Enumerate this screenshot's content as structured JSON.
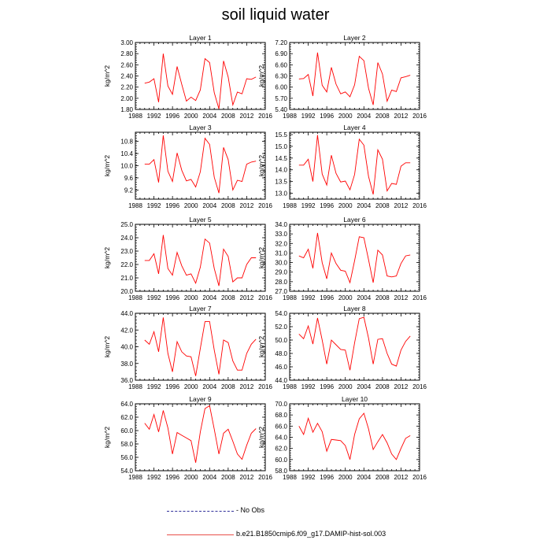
{
  "title": "soil liquid water",
  "legend": [
    {
      "label": "- No Obs",
      "color": "#2f2f9a",
      "style": "dashed"
    },
    {
      "label": "b.e21.B1850cmip6.f09_g17.DAMIP-hist-sol.003",
      "color": "#e8504a",
      "style": "solid"
    }
  ],
  "chart_data": [
    {
      "type": "line",
      "title": "Layer 1",
      "xlabel": "",
      "ylabel": "kg/m^2",
      "xlim": [
        1988,
        2016
      ],
      "xticks": [
        1988,
        1992,
        1996,
        2000,
        2004,
        2008,
        2012,
        2016
      ],
      "ylim": [
        1.8,
        3.0
      ],
      "yticks": [
        1.8,
        2.0,
        2.2,
        2.4,
        2.6,
        2.8,
        3.0
      ],
      "ytick_format": 2,
      "series": [
        {
          "color": "#ff0000",
          "x": [
            1990,
            1991,
            1992,
            1993,
            1994,
            1995,
            1996,
            1997,
            1998,
            1999,
            2000,
            2001,
            2002,
            2003,
            2004,
            2005,
            2006,
            2007,
            2008,
            2009,
            2010,
            2011,
            2012,
            2013,
            2014
          ],
          "y": [
            2.27,
            2.29,
            2.35,
            1.93,
            2.8,
            2.22,
            2.07,
            2.57,
            2.25,
            1.95,
            2.02,
            1.96,
            2.15,
            2.71,
            2.64,
            2.1,
            1.81,
            2.67,
            2.38,
            1.88,
            2.11,
            2.08,
            2.35,
            2.34,
            2.38
          ]
        }
      ]
    },
    {
      "type": "line",
      "title": "Layer 2",
      "xlabel": "",
      "ylabel": "kg/m^2",
      "xlim": [
        1988,
        2016
      ],
      "xticks": [
        1988,
        1992,
        1996,
        2000,
        2004,
        2008,
        2012,
        2016
      ],
      "ylim": [
        5.4,
        7.2
      ],
      "yticks": [
        5.4,
        5.7,
        6.0,
        6.3,
        6.6,
        6.9,
        7.2
      ],
      "ytick_format": 2,
      "series": [
        {
          "color": "#ff0000",
          "x": [
            1990,
            1991,
            1992,
            1993,
            1994,
            1995,
            1996,
            1997,
            1998,
            1999,
            2000,
            2001,
            2002,
            2003,
            2004,
            2005,
            2006,
            2007,
            2008,
            2009,
            2010,
            2011,
            2012,
            2013,
            2014
          ],
          "y": [
            6.22,
            6.23,
            6.34,
            5.76,
            6.93,
            6.05,
            5.87,
            6.53,
            6.08,
            5.82,
            5.87,
            5.74,
            6.06,
            6.83,
            6.71,
            5.97,
            5.52,
            6.66,
            6.35,
            5.62,
            5.92,
            5.88,
            6.25,
            6.28,
            6.32
          ]
        }
      ]
    },
    {
      "type": "line",
      "title": "Layer 3",
      "xlabel": "",
      "ylabel": "kg/m^2",
      "xlim": [
        1988,
        2016
      ],
      "xticks": [
        1988,
        1992,
        1996,
        2000,
        2004,
        2008,
        2012,
        2016
      ],
      "ylim": [
        8.9,
        11.1
      ],
      "yticks": [
        9.2,
        9.6,
        10.0,
        10.4,
        10.8
      ],
      "ytick_format": 1,
      "series": [
        {
          "color": "#ff0000",
          "x": [
            1990,
            1991,
            1992,
            1993,
            1994,
            1995,
            1996,
            1997,
            1998,
            1999,
            2000,
            2001,
            2002,
            2003,
            2004,
            2005,
            2006,
            2007,
            2008,
            2009,
            2010,
            2011,
            2012,
            2013,
            2014
          ],
          "y": [
            10.05,
            10.05,
            10.2,
            9.45,
            11.0,
            9.82,
            9.48,
            10.42,
            9.85,
            9.5,
            9.55,
            9.3,
            9.8,
            10.9,
            10.7,
            9.62,
            9.1,
            10.6,
            10.2,
            9.2,
            9.52,
            9.48,
            10.05,
            10.12,
            10.15
          ]
        }
      ]
    },
    {
      "type": "line",
      "title": "Layer 4",
      "xlabel": "",
      "ylabel": "kg/m^2",
      "xlim": [
        1988,
        2016
      ],
      "xticks": [
        1988,
        1992,
        1996,
        2000,
        2004,
        2008,
        2012,
        2016
      ],
      "ylim": [
        12.75,
        15.6
      ],
      "yticks": [
        13.0,
        13.5,
        14.0,
        14.5,
        15.0,
        15.5
      ],
      "ytick_format": 1,
      "series": [
        {
          "color": "#ff0000",
          "x": [
            1990,
            1991,
            1992,
            1993,
            1994,
            1995,
            1996,
            1997,
            1998,
            1999,
            2000,
            2001,
            2002,
            2003,
            2004,
            2005,
            2006,
            2007,
            2008,
            2009,
            2010,
            2011,
            2012,
            2013,
            2014
          ],
          "y": [
            14.2,
            14.2,
            14.45,
            13.5,
            15.48,
            13.82,
            13.35,
            14.62,
            13.85,
            13.48,
            13.52,
            13.15,
            13.8,
            15.3,
            15.05,
            13.72,
            12.95,
            14.85,
            14.45,
            13.1,
            13.42,
            13.38,
            14.15,
            14.3,
            14.3
          ]
        }
      ]
    },
    {
      "type": "line",
      "title": "Layer 5",
      "xlabel": "",
      "ylabel": "kg/m^2",
      "xlim": [
        1988,
        2016
      ],
      "xticks": [
        1988,
        1992,
        1996,
        2000,
        2004,
        2008,
        2012,
        2016
      ],
      "ylim": [
        20.0,
        25.0
      ],
      "yticks": [
        20.0,
        21.0,
        22.0,
        23.0,
        24.0,
        25.0
      ],
      "ytick_format": 1,
      "series": [
        {
          "color": "#ff0000",
          "x": [
            1990,
            1991,
            1992,
            1993,
            1994,
            1995,
            1996,
            1997,
            1998,
            1999,
            2000,
            2001,
            2002,
            2003,
            2004,
            2005,
            2006,
            2007,
            2008,
            2009,
            2010,
            2011,
            2012,
            2013,
            2014
          ],
          "y": [
            22.3,
            22.3,
            22.8,
            21.3,
            24.2,
            21.7,
            21.2,
            22.9,
            21.9,
            21.2,
            21.3,
            20.6,
            21.8,
            23.9,
            23.6,
            21.7,
            20.4,
            23.15,
            22.6,
            20.7,
            21.0,
            21.0,
            22.0,
            22.5,
            22.5
          ]
        }
      ]
    },
    {
      "type": "line",
      "title": "Layer 6",
      "xlabel": "",
      "ylabel": "kg/m^2",
      "xlim": [
        1988,
        2016
      ],
      "xticks": [
        1988,
        1992,
        1996,
        2000,
        2004,
        2008,
        2012,
        2016
      ],
      "ylim": [
        27.0,
        34.0
      ],
      "yticks": [
        27.0,
        28.0,
        29.0,
        30.0,
        31.0,
        32.0,
        33.0,
        34.0
      ],
      "ytick_format": 1,
      "series": [
        {
          "color": "#ff0000",
          "x": [
            1990,
            1991,
            1992,
            1993,
            1994,
            1995,
            1996,
            1997,
            1998,
            1999,
            2000,
            2001,
            2002,
            2003,
            2004,
            2005,
            2006,
            2007,
            2008,
            2009,
            2010,
            2011,
            2012,
            2013,
            2014
          ],
          "y": [
            30.7,
            30.5,
            31.4,
            29.4,
            33.1,
            30.0,
            28.3,
            31.0,
            29.9,
            29.2,
            29.1,
            27.9,
            30.2,
            32.7,
            32.6,
            30.3,
            27.9,
            31.3,
            30.8,
            28.6,
            28.5,
            28.6,
            29.9,
            30.7,
            30.8
          ]
        }
      ]
    },
    {
      "type": "line",
      "title": "Layer 7",
      "xlabel": "",
      "ylabel": "kg/m^2",
      "xlim": [
        1988,
        2016
      ],
      "xticks": [
        1988,
        1992,
        1996,
        2000,
        2004,
        2008,
        2012,
        2016
      ],
      "ylim": [
        36.0,
        44.0
      ],
      "yticks": [
        36.0,
        38.0,
        40.0,
        42.0,
        44.0
      ],
      "ytick_format": 1,
      "series": [
        {
          "color": "#ff0000",
          "x": [
            1990,
            1991,
            1992,
            1993,
            1994,
            1995,
            1996,
            1997,
            1998,
            1999,
            2000,
            2001,
            2002,
            2003,
            2004,
            2005,
            2006,
            2007,
            2008,
            2009,
            2010,
            2011,
            2012,
            2013,
            2014
          ],
          "y": [
            40.8,
            40.3,
            41.8,
            39.4,
            43.5,
            39.2,
            37.0,
            40.6,
            39.4,
            38.9,
            38.8,
            36.5,
            39.8,
            43.0,
            43.0,
            39.6,
            36.7,
            40.8,
            40.5,
            38.3,
            37.2,
            37.2,
            39.2,
            40.3,
            40.9
          ]
        }
      ]
    },
    {
      "type": "line",
      "title": "Layer 8",
      "xlabel": "",
      "ylabel": "kg/m^2",
      "xlim": [
        1988,
        2016
      ],
      "xticks": [
        1988,
        1992,
        1996,
        2000,
        2004,
        2008,
        2012,
        2016
      ],
      "ylim": [
        44.0,
        54.0
      ],
      "yticks": [
        44.0,
        46.0,
        48.0,
        50.0,
        52.0,
        54.0
      ],
      "ytick_format": 1,
      "series": [
        {
          "color": "#ff0000",
          "x": [
            1990,
            1991,
            1992,
            1993,
            1994,
            1995,
            1996,
            1997,
            1998,
            1999,
            2000,
            2001,
            2002,
            2003,
            2004,
            2005,
            2006,
            2007,
            2008,
            2009,
            2010,
            2011,
            2012,
            2013,
            2014
          ],
          "y": [
            50.9,
            50.2,
            52.1,
            49.4,
            53.3,
            50.0,
            46.4,
            50.0,
            49.3,
            48.6,
            48.5,
            45.5,
            49.6,
            53.2,
            53.4,
            50.3,
            46.4,
            50.1,
            50.2,
            48.0,
            46.4,
            46.1,
            48.5,
            49.8,
            50.6
          ]
        }
      ]
    },
    {
      "type": "line",
      "title": "Layer 9",
      "xlabel": "",
      "ylabel": "kg/m^2",
      "xlim": [
        1988,
        2016
      ],
      "xticks": [
        1988,
        1992,
        1996,
        2000,
        2004,
        2008,
        2012,
        2016
      ],
      "ylim": [
        54.0,
        64.0
      ],
      "yticks": [
        54.0,
        56.0,
        58.0,
        60.0,
        62.0,
        64.0
      ],
      "ytick_format": 1,
      "series": [
        {
          "color": "#ff0000",
          "x": [
            1990,
            1991,
            1992,
            1993,
            1994,
            1995,
            1996,
            1997,
            1998,
            1999,
            2000,
            2001,
            2002,
            2003,
            2004,
            2005,
            2006,
            2007,
            2008,
            2009,
            2010,
            2011,
            2012,
            2013,
            2014
          ],
          "y": [
            61.1,
            60.2,
            62.4,
            59.8,
            63.0,
            60.4,
            56.5,
            59.7,
            59.3,
            58.9,
            58.5,
            55.2,
            59.8,
            63.3,
            63.7,
            60.2,
            56.5,
            59.6,
            60.2,
            58.4,
            56.5,
            55.7,
            57.8,
            59.6,
            60.3
          ]
        }
      ]
    },
    {
      "type": "line",
      "title": "Layer 10",
      "xlabel": "",
      "ylabel": "kg/m^2",
      "xlim": [
        1988,
        2016
      ],
      "xticks": [
        1988,
        1992,
        1996,
        2000,
        2004,
        2008,
        2012,
        2016
      ],
      "ylim": [
        58.0,
        70.0
      ],
      "yticks": [
        58.0,
        60.0,
        62.0,
        64.0,
        66.0,
        68.0,
        70.0
      ],
      "ytick_format": 1,
      "series": [
        {
          "color": "#ff0000",
          "x": [
            1990,
            1991,
            1992,
            1993,
            1994,
            1995,
            1996,
            1997,
            1998,
            1999,
            2000,
            2001,
            2002,
            2003,
            2004,
            2005,
            2006,
            2007,
            2008,
            2009,
            2010,
            2011,
            2012,
            2013,
            2014
          ],
          "y": [
            66.0,
            64.5,
            67.4,
            64.9,
            66.5,
            65.0,
            61.5,
            63.6,
            63.5,
            63.4,
            62.5,
            60.0,
            64.5,
            67.3,
            68.3,
            65.5,
            61.8,
            63.2,
            64.5,
            63.0,
            61.0,
            60.0,
            62.0,
            63.8,
            64.3
          ]
        }
      ]
    }
  ]
}
